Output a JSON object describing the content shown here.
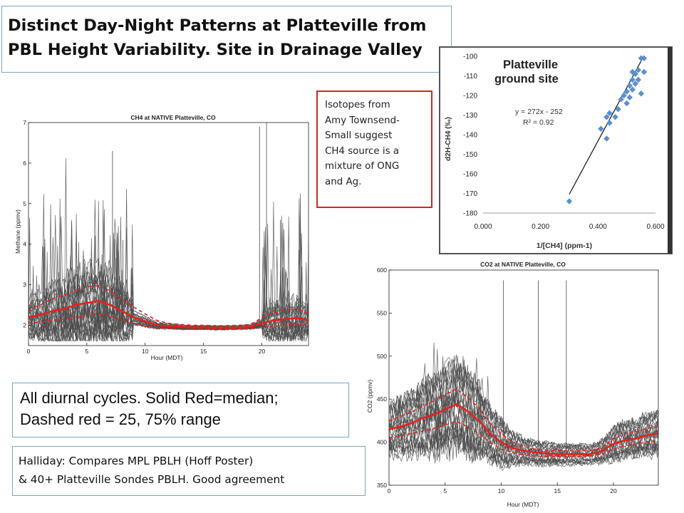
{
  "title": {
    "line1": "Distinct Day-Night Patterns at Platteville from",
    "line2": "PBL Height Variability.  Site in Drainage Valley"
  },
  "isotope_note": {
    "lines": [
      "Isotopes from",
      "Amy Townsend-",
      "Small suggest",
      "CH4 source is a",
      "mixture of ONG",
      "and Ag."
    ]
  },
  "diurnal_note": {
    "line1": "All diurnal cycles.  Solid Red=median;",
    "line2": "Dashed red = 25, 75% range"
  },
  "halliday_note": {
    "line1": "Halliday: Compares MPL PBLH (Hoff Poster)",
    "line2": "& 40+ Platteville Sondes PBLH.  Good agreement"
  },
  "colors": {
    "median": "#e8201c",
    "traces": "#4a4a4a",
    "scatter_points": "#5b8fce",
    "box_blue": "#7aa6c9",
    "box_red": "#c8282a"
  },
  "chart_data": [
    {
      "type": "line",
      "title": "CH4 at NATIVE Platteville, CO",
      "xlabel": "Hour (MDT)",
      "ylabel": "Methane (ppmv)",
      "xlim": [
        0,
        24
      ],
      "ylim": [
        1.5,
        7
      ],
      "x_ticks": [
        "0",
        "5",
        "10",
        "15",
        "20"
      ],
      "y_ticks": [
        "2",
        "3",
        "4",
        "5",
        "6",
        "7"
      ],
      "x": [
        0,
        1,
        2,
        3,
        4,
        5,
        6,
        7,
        8,
        9,
        10,
        11,
        12,
        13,
        14,
        15,
        16,
        17,
        18,
        19,
        20,
        21,
        22,
        23,
        24
      ],
      "series": [
        {
          "values": [
            2.2,
            2.25,
            2.35,
            2.4,
            2.5,
            2.55,
            2.6,
            2.5,
            2.35,
            2.2,
            2.1,
            2.0,
            1.98,
            1.96,
            1.95,
            1.95,
            1.94,
            1.94,
            1.95,
            1.96,
            2.05,
            2.12,
            2.15,
            2.18,
            2.12
          ]
        },
        {
          "values": [
            2.05,
            2.08,
            2.12,
            2.15,
            2.2,
            2.25,
            2.28,
            2.22,
            2.15,
            2.05,
            1.98,
            1.94,
            1.92,
            1.9,
            1.9,
            1.9,
            1.9,
            1.9,
            1.91,
            1.92,
            1.95,
            1.98,
            2.0,
            2.02,
            2.0
          ]
        },
        {
          "values": [
            2.4,
            2.5,
            2.65,
            2.75,
            2.85,
            2.95,
            2.98,
            2.85,
            2.65,
            2.45,
            2.28,
            2.12,
            2.05,
            2.02,
            2.0,
            2.0,
            1.99,
            1.99,
            2.0,
            2.02,
            2.18,
            2.3,
            2.38,
            2.4,
            2.3
          ]
        }
      ]
    },
    {
      "type": "line",
      "title": "CO2 at NATIVE Platteville, CO",
      "xlabel": "Hour (MDT)",
      "ylabel": "CO2 (ppmv)",
      "xlim": [
        0,
        24
      ],
      "ylim": [
        350,
        600
      ],
      "x_ticks": [
        "0",
        "5",
        "10",
        "15",
        "20"
      ],
      "y_ticks": [
        "350",
        "400",
        "450",
        "500",
        "550",
        "600"
      ],
      "x": [
        0,
        1,
        2,
        3,
        4,
        5,
        6,
        7,
        8,
        9,
        10,
        11,
        12,
        13,
        14,
        15,
        16,
        17,
        18,
        19,
        20,
        21,
        22,
        23,
        24
      ],
      "series": [
        {
          "values": [
            415,
            418,
            422,
            428,
            432,
            438,
            444,
            436,
            425,
            410,
            400,
            393,
            390,
            388,
            387,
            386,
            386,
            386,
            386,
            390,
            398,
            402,
            404,
            408,
            410
          ]
        },
        {
          "values": [
            405,
            407,
            410,
            413,
            416,
            420,
            424,
            418,
            410,
            400,
            392,
            388,
            385,
            384,
            383,
            383,
            383,
            383,
            384,
            386,
            392,
            396,
            398,
            400,
            402
          ]
        },
        {
          "values": [
            425,
            430,
            435,
            442,
            448,
            455,
            462,
            452,
            440,
            422,
            410,
            400,
            395,
            392,
            391,
            390,
            390,
            390,
            390,
            394,
            404,
            410,
            412,
            416,
            418
          ]
        }
      ]
    },
    {
      "type": "scatter",
      "title": "Platteville ground site",
      "xlabel": "1/[CH4] (ppm-1)",
      "ylabel": "d2H-CH4 (‰)",
      "xlim": [
        0,
        0.6
      ],
      "ylim": [
        -180,
        -100
      ],
      "x_ticks": [
        "0.000",
        "0.200",
        "0.400",
        "0.600"
      ],
      "y_ticks": [
        "-100",
        "-110",
        "-120",
        "-130",
        "-140",
        "-150",
        "-160",
        "-170",
        "-180"
      ],
      "annotation_eq": "y = 272x - 252",
      "annotation_r2": "R² = 0.92",
      "points": [
        {
          "x": 0.3,
          "y": -174
        },
        {
          "x": 0.41,
          "y": -137
        },
        {
          "x": 0.43,
          "y": -142
        },
        {
          "x": 0.43,
          "y": -131
        },
        {
          "x": 0.44,
          "y": -134
        },
        {
          "x": 0.44,
          "y": -129
        },
        {
          "x": 0.46,
          "y": -131
        },
        {
          "x": 0.47,
          "y": -127
        },
        {
          "x": 0.48,
          "y": -122
        },
        {
          "x": 0.49,
          "y": -120
        },
        {
          "x": 0.5,
          "y": -124
        },
        {
          "x": 0.5,
          "y": -118
        },
        {
          "x": 0.51,
          "y": -115
        },
        {
          "x": 0.51,
          "y": -121
        },
        {
          "x": 0.52,
          "y": -112
        },
        {
          "x": 0.52,
          "y": -117
        },
        {
          "x": 0.52,
          "y": -108
        },
        {
          "x": 0.53,
          "y": -114
        },
        {
          "x": 0.53,
          "y": -109
        },
        {
          "x": 0.54,
          "y": -107
        },
        {
          "x": 0.54,
          "y": -112
        },
        {
          "x": 0.55,
          "y": -101
        },
        {
          "x": 0.56,
          "y": -101
        },
        {
          "x": 0.56,
          "y": -108
        },
        {
          "x": 0.55,
          "y": -119
        }
      ],
      "trendline": {
        "x": [
          0.3,
          0.555
        ],
        "y": [
          -170.4,
          -101.0
        ]
      }
    }
  ]
}
